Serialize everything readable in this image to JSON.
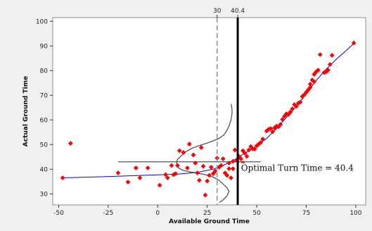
{
  "chart_data": {
    "type": "scatter",
    "title": "",
    "xlabel": "Available Ground Time",
    "ylabel": "Actual Ground Time",
    "xlim": [
      -53,
      105
    ],
    "ylim": [
      25.5,
      101.5
    ],
    "xticks": [
      -50,
      -25,
      0,
      25,
      50,
      75,
      100
    ],
    "xtick_labels": [
      "-50",
      "-25",
      "0",
      "25",
      "50",
      "75",
      "100"
    ],
    "yticks": [
      30,
      40,
      50,
      60,
      70,
      80,
      90,
      100
    ],
    "ytick_labels": [
      "30",
      "40",
      "50",
      "60",
      "70",
      "80",
      "90",
      "100"
    ],
    "grid": false,
    "background_color": "#f0f0f0",
    "plot_color": "#ffffff",
    "points_color": "#ff0000",
    "fit_color": "#0000ff",
    "points": [
      [
        -48,
        36.5
      ],
      [
        -44,
        50.5
      ],
      [
        -20,
        38.5
      ],
      [
        -15,
        34.8
      ],
      [
        -11,
        40.5
      ],
      [
        -9,
        36.5
      ],
      [
        -5,
        40.5
      ],
      [
        1,
        33.5
      ],
      [
        4,
        37.8
      ],
      [
        5,
        36.5
      ],
      [
        7,
        41.5
      ],
      [
        8,
        37.8
      ],
      [
        9,
        38.2
      ],
      [
        10,
        41.5
      ],
      [
        11,
        47.5
      ],
      [
        13,
        46.8
      ],
      [
        15,
        40.5
      ],
      [
        16,
        50.2
      ],
      [
        18,
        45.8
      ],
      [
        19,
        42.5
      ],
      [
        20,
        38.5
      ],
      [
        21,
        35.5
      ],
      [
        22,
        48.8
      ],
      [
        23,
        41.2
      ],
      [
        24,
        29.5
      ],
      [
        25,
        35.2
      ],
      [
        26,
        37.5
      ],
      [
        27,
        40.8
      ],
      [
        28,
        38.2
      ],
      [
        29,
        39.2
      ],
      [
        30,
        44.5
      ],
      [
        31,
        40.8
      ],
      [
        32,
        41.5
      ],
      [
        33,
        44.2
      ],
      [
        34,
        38.5
      ],
      [
        35,
        37.5
      ],
      [
        36,
        40.2
      ],
      [
        36,
        42.5
      ],
      [
        37,
        36.5
      ],
      [
        38,
        43.2
      ],
      [
        38,
        40.2
      ],
      [
        39,
        47.8
      ],
      [
        40,
        43.5
      ],
      [
        41,
        45.2
      ],
      [
        42,
        44.2
      ],
      [
        43,
        47.5
      ],
      [
        43,
        42.5
      ],
      [
        44,
        46.5
      ],
      [
        45,
        45.2
      ],
      [
        46,
        47.8
      ],
      [
        47,
        49.2
      ],
      [
        48,
        48.2
      ],
      [
        49,
        48.2
      ],
      [
        50,
        49.5
      ],
      [
        51,
        50.2
      ],
      [
        52,
        50.8
      ],
      [
        53,
        52.2
      ],
      [
        55,
        55.5
      ],
      [
        56,
        56.2
      ],
      [
        57,
        56.5
      ],
      [
        58,
        55.2
      ],
      [
        59,
        56.8
      ],
      [
        60,
        57.5
      ],
      [
        61,
        57.2
      ],
      [
        62,
        58.2
      ],
      [
        63,
        60.2
      ],
      [
        64,
        61.5
      ],
      [
        65,
        62.5
      ],
      [
        66,
        62.2
      ],
      [
        67,
        63.2
      ],
      [
        68,
        64.5
      ],
      [
        69,
        66.2
      ],
      [
        70,
        65.5
      ],
      [
        71,
        66.8
      ],
      [
        72,
        67.2
      ],
      [
        73,
        69.5
      ],
      [
        74,
        70.2
      ],
      [
        75,
        71.2
      ],
      [
        76,
        72.2
      ],
      [
        77,
        74.5
      ],
      [
        77,
        73.2
      ],
      [
        78,
        76.2
      ],
      [
        79,
        75.5
      ],
      [
        79,
        78.5
      ],
      [
        80,
        79.5
      ],
      [
        81,
        80.2
      ],
      [
        82,
        86.5
      ],
      [
        84,
        79.2
      ],
      [
        85,
        79.5
      ],
      [
        86,
        80.2
      ],
      [
        87,
        82.5
      ],
      [
        88,
        86.2
      ],
      [
        99,
        91.2
      ]
    ],
    "fit_line": [
      [
        -48,
        36.5
      ],
      [
        -30,
        36.9
      ],
      [
        -10,
        37.4
      ],
      [
        10,
        38.0
      ],
      [
        20,
        38.7
      ],
      [
        28,
        40.0
      ],
      [
        33,
        41.5
      ],
      [
        38,
        43.5
      ],
      [
        42,
        45.5
      ],
      [
        46,
        47.5
      ],
      [
        50,
        49.5
      ],
      [
        55,
        52.5
      ],
      [
        60,
        56.5
      ],
      [
        65,
        61.0
      ],
      [
        70,
        65.5
      ],
      [
        75,
        70.5
      ],
      [
        80,
        76.0
      ],
      [
        85,
        80.5
      ],
      [
        90,
        84.5
      ],
      [
        95,
        88.0
      ],
      [
        99,
        91.0
      ]
    ],
    "density_curve": [
      [
        31,
        26.5
      ],
      [
        33,
        27.5
      ],
      [
        35,
        29.2
      ],
      [
        36,
        31.0
      ],
      [
        35,
        32.5
      ],
      [
        33,
        34.0
      ],
      [
        31,
        35.5
      ],
      [
        28,
        36.8
      ],
      [
        25,
        37.6
      ],
      [
        21,
        38.3
      ],
      [
        17,
        38.8
      ],
      [
        13,
        39.5
      ],
      [
        10.5,
        40.5
      ],
      [
        9.5,
        42.5
      ],
      [
        10,
        44.0
      ],
      [
        12,
        45.5
      ],
      [
        14,
        47.0
      ],
      [
        17,
        48.4
      ],
      [
        21,
        49.6
      ],
      [
        25,
        50.6
      ],
      [
        28,
        51.5
      ],
      [
        31,
        52.5
      ],
      [
        33.5,
        54.0
      ],
      [
        35,
        55.8
      ],
      [
        36,
        57.5
      ],
      [
        37,
        60.0
      ],
      [
        37.5,
        62.5
      ],
      [
        37.5,
        64.5
      ],
      [
        37,
        66.5
      ]
    ],
    "horizontal_line": {
      "y": 43,
      "x_start": -20,
      "x_end": 52
    },
    "reference_lines": [
      {
        "x": 30,
        "label": "30",
        "style": "dashed",
        "color": "#888888"
      },
      {
        "x": 40.4,
        "label": "40.4",
        "style": "solid",
        "color": "#000000"
      }
    ],
    "annotation": {
      "text": "Optimal Turn Time = 40.4",
      "x": 41,
      "y": 40.5
    }
  }
}
